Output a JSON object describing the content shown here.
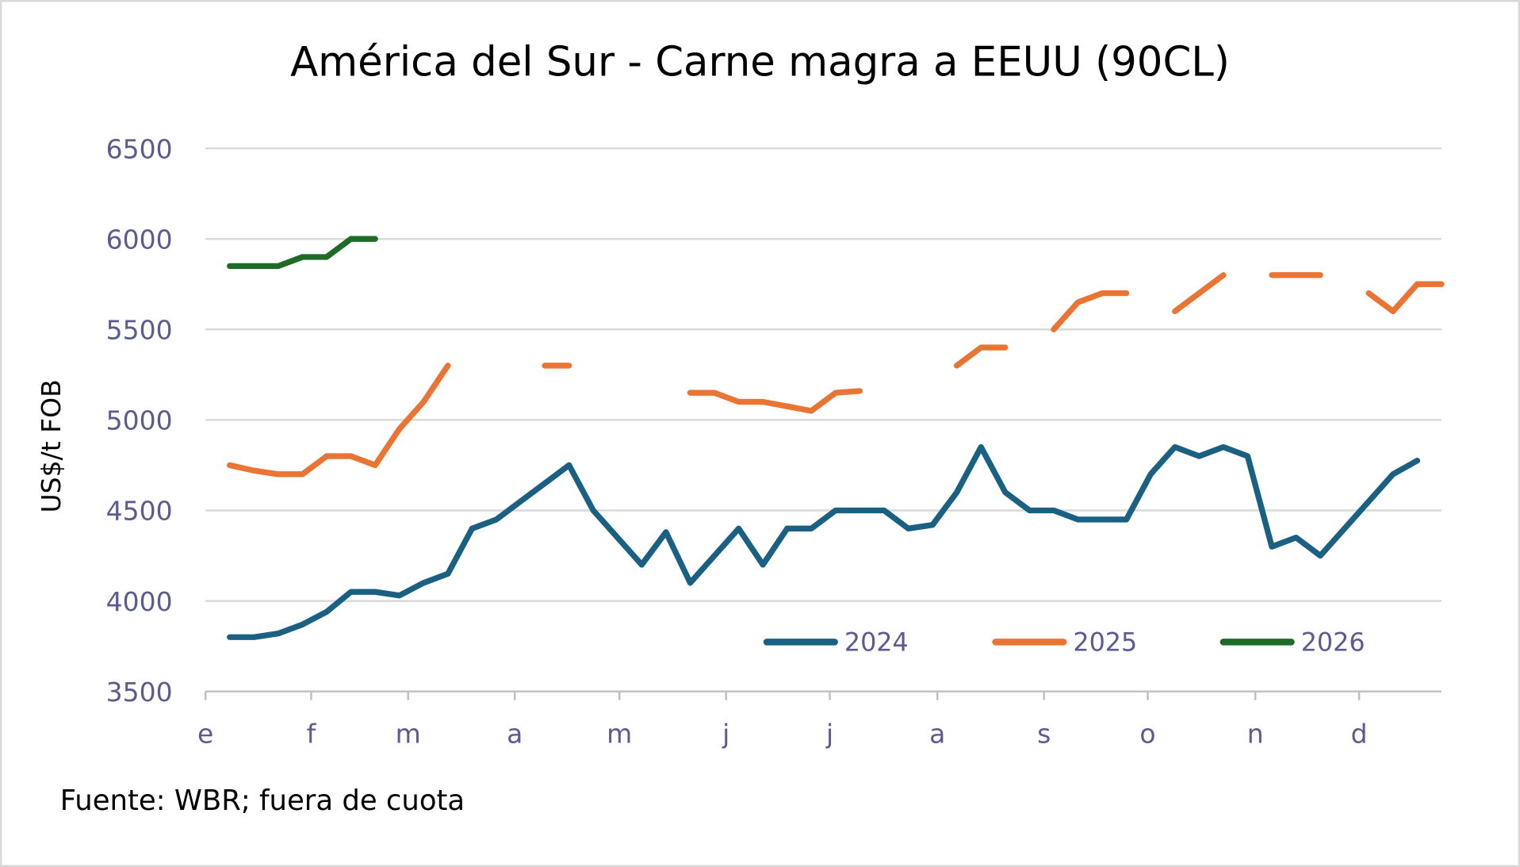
{
  "chart_data": {
    "type": "line",
    "title": "América del Sur - Carne magra a EEUU (90CL)",
    "ylabel": "US$/t FOB",
    "xlabel": "",
    "source": "Fuente: WBR; fuera de cuota",
    "ylim": [
      3500,
      6500
    ],
    "yticks": [
      "3500",
      "4000",
      "4500",
      "5000",
      "5500",
      "6000",
      "6500"
    ],
    "month_labels": [
      "e",
      "f",
      "m",
      "a",
      "m",
      "j",
      "j",
      "a",
      "s",
      "o",
      "n",
      "d"
    ],
    "grid": true,
    "legend_position": "bottom-right inside plot",
    "series": [
      {
        "name": "2024",
        "color": "#1a6082",
        "values": [
          3800,
          3800,
          3820,
          3870,
          3940,
          4050,
          4050,
          4030,
          4100,
          4150,
          4400,
          4450,
          4550,
          4650,
          4750,
          4500,
          4350,
          4200,
          4380,
          4100,
          4250,
          4400,
          4200,
          4400,
          4400,
          4500,
          4500,
          4500,
          4400,
          4420,
          4600,
          4850,
          4600,
          4500,
          4500,
          4450,
          4450,
          4450,
          4700,
          4850,
          4800,
          4850,
          4800,
          4300,
          4350,
          4250,
          4400,
          4550,
          4700,
          4775
        ]
      },
      {
        "name": "2025",
        "color": "#ea7434",
        "values": [
          4750,
          4720,
          4700,
          4700,
          4800,
          4800,
          4750,
          4950,
          5100,
          5300,
          null,
          null,
          null,
          5300,
          5300,
          null,
          null,
          null,
          null,
          5150,
          5150,
          5100,
          5100,
          5075,
          5050,
          5150,
          5160,
          null,
          null,
          null,
          5300,
          5400,
          5400,
          null,
          5500,
          5650,
          5700,
          5700,
          null,
          5600,
          5700,
          5800,
          null,
          5800,
          5800,
          5800,
          null,
          5700,
          5600,
          5750,
          5750
        ]
      },
      {
        "name": "2026",
        "color": "#1e6b28",
        "values": [
          5850,
          5850,
          5850,
          5900,
          5900,
          6000,
          6000
        ]
      }
    ]
  }
}
